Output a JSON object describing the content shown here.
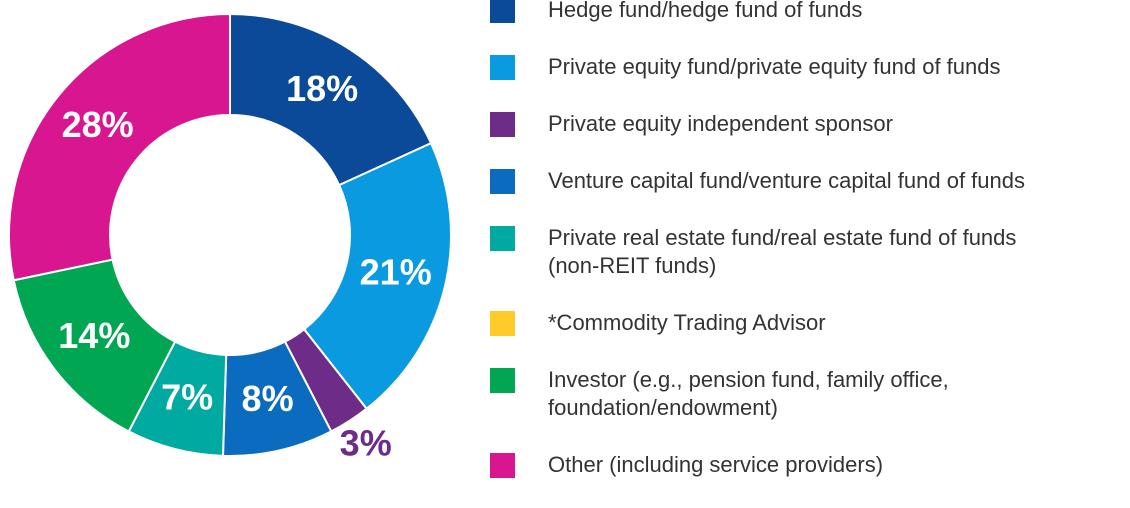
{
  "chart_data": {
    "type": "donut",
    "categories": [
      "Hedge fund/hedge fund of funds",
      "Private equity fund/private equity fund of funds",
      "Private equity independent sponsor",
      "Venture capital fund/venture capital fund of funds",
      "Private real estate fund/real estate fund of funds\n(non-REIT funds)",
      "*Commodity Trading Advisor",
      "Investor (e.g., pension fund, family office,\nfoundation/endowment)",
      "Other (including service providers)"
    ],
    "values": [
      18,
      21,
      3,
      8,
      7,
      0,
      14,
      28
    ],
    "value_labels": [
      "18%",
      "21%",
      "3%",
      "8%",
      "7%",
      null,
      "14%",
      "28%"
    ],
    "colors": [
      "#0b4a98",
      "#0a9ae0",
      "#6d2c87",
      "#0b6cbf",
      "#00aaa0",
      "#ffcb2b",
      "#00a651",
      "#d8168f"
    ],
    "legend": "right"
  }
}
